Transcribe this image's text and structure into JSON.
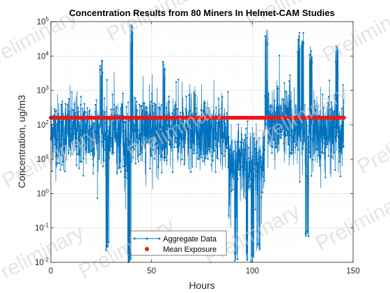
{
  "chart_data": {
    "type": "line",
    "title": "Concentration Results from 80 Miners In Helmet-CAM Studies",
    "xlabel": "Hours",
    "ylabel": "Concentration, ug/m3",
    "xlim": [
      0,
      150
    ],
    "ylim": [
      0.01,
      100000
    ],
    "yscale": "log",
    "grid": true,
    "minor_grid": true,
    "xticks": [
      0,
      50,
      100,
      150
    ],
    "xtick_labels": [
      "0",
      "50",
      "100",
      "150"
    ],
    "yticks": [
      0.01,
      0.1,
      1,
      10,
      100,
      1000,
      10000,
      100000
    ],
    "ytick_labels": [
      {
        "base": "10",
        "exp": "-2"
      },
      {
        "base": "10",
        "exp": "-1"
      },
      {
        "base": "10",
        "exp": "0"
      },
      {
        "base": "10",
        "exp": "1"
      },
      {
        "base": "10",
        "exp": "2"
      },
      {
        "base": "10",
        "exp": "3"
      },
      {
        "base": "10",
        "exp": "4"
      },
      {
        "base": "10",
        "exp": "5"
      }
    ],
    "legend_position": "bottom-center",
    "series": [
      {
        "name": "Aggregate Data",
        "color": "#0072BD",
        "marker": "dot-line",
        "x_range": [
          0,
          145.5
        ],
        "median": 60,
        "min": 0.01,
        "max": 90000,
        "notable_peaks": [
          {
            "x": 25,
            "y": 8000
          },
          {
            "x": 40,
            "y": 90000
          },
          {
            "x": 56,
            "y": 8000
          },
          {
            "x": 107,
            "y": 80000
          },
          {
            "x": 123,
            "y": 50000
          },
          {
            "x": 125,
            "y": 60000
          },
          {
            "x": 129,
            "y": 20000
          },
          {
            "x": 142,
            "y": 20000
          }
        ],
        "notable_dips": [
          {
            "x": 28,
            "y": 0.02
          },
          {
            "x": 39,
            "y": 0.01
          },
          {
            "x": 92,
            "y": 0.01
          },
          {
            "x": 97,
            "y": 0.01
          },
          {
            "x": 100,
            "y": 0.01
          },
          {
            "x": 103,
            "y": 0.02
          },
          {
            "x": 127,
            "y": 0.05
          }
        ]
      },
      {
        "name": "Mean Exposure",
        "color": "#E8191B",
        "marker": "filled-circle",
        "x_range": [
          0,
          145.5
        ],
        "value": 160
      }
    ],
    "watermark": "Preliminary"
  }
}
